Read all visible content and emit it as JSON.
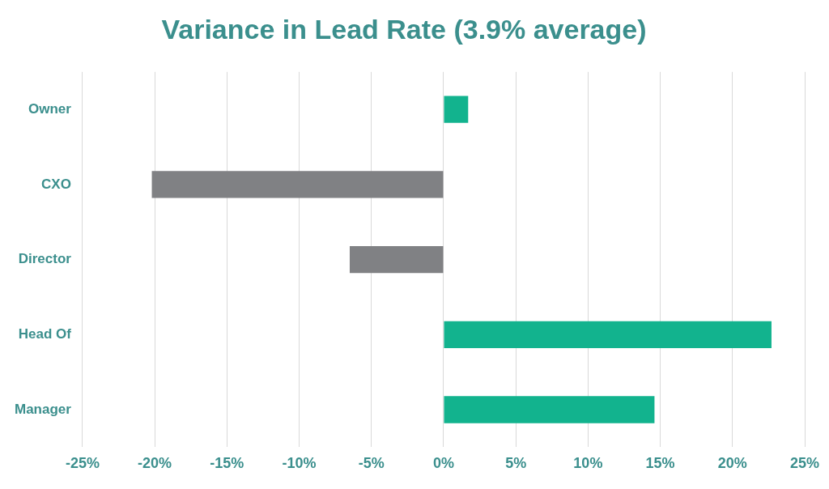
{
  "chart_data": {
    "type": "bar",
    "orientation": "horizontal",
    "title": "Variance in Lead Rate (3.9% average)",
    "categories": [
      "Owner",
      "CXO",
      "Director",
      "Head Of",
      "Manager"
    ],
    "values": [
      1.7,
      -20.2,
      -6.5,
      22.7,
      14.6
    ],
    "colors": [
      "#12b38e",
      "#808184",
      "#808184",
      "#12b38e",
      "#12b38e"
    ],
    "xlim": [
      -25,
      25
    ],
    "xticks": [
      {
        "value": -25,
        "label": "-25%"
      },
      {
        "value": -20,
        "label": "-20%"
      },
      {
        "value": -15,
        "label": "-15%"
      },
      {
        "value": -10,
        "label": "-10%"
      },
      {
        "value": -5,
        "label": "-5%"
      },
      {
        "value": 0,
        "label": "0%"
      },
      {
        "value": 5,
        "label": "5%"
      },
      {
        "value": 10,
        "label": "10%"
      },
      {
        "value": 15,
        "label": "15%"
      },
      {
        "value": 20,
        "label": "20%"
      },
      {
        "value": 25,
        "label": "25%"
      }
    ],
    "grid": true
  }
}
